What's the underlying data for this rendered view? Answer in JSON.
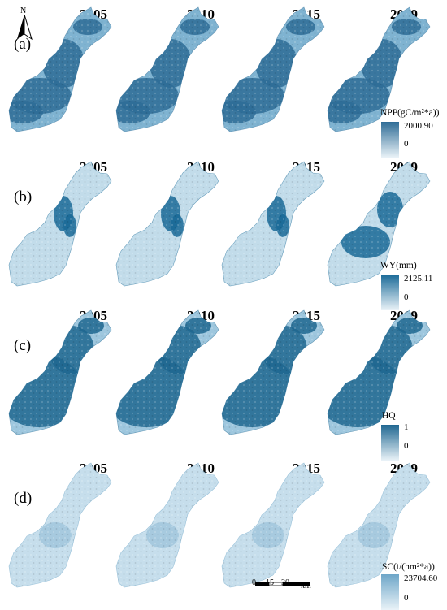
{
  "north_arrow": {
    "label": "N"
  },
  "years": [
    "2005",
    "2010",
    "2015",
    "2019"
  ],
  "panels": [
    {
      "letter": "(a)",
      "legend_title": "NPP(gC/m²*a))",
      "legend_max": "2000.90",
      "legend_min": "0",
      "color_dark": "#2e6c96",
      "color_light": "#7fb3d1"
    },
    {
      "letter": "(b)",
      "legend_title": "WY(mm)",
      "legend_max": "2125.11",
      "legend_min": "0",
      "color_dark": "#1a6a98",
      "color_light": "#c2dcea"
    },
    {
      "letter": "(c)",
      "legend_title": "HQ",
      "legend_max": "1",
      "legend_min": "0",
      "color_dark": "#1f6791",
      "color_light": "#9ec7de"
    },
    {
      "letter": "(d)",
      "legend_title": "SC(t/(hm²*a))",
      "legend_max": "23704.60",
      "legend_min": "0",
      "color_dark": "#6ea6c8",
      "color_light": "#c6deec"
    }
  ],
  "scale_bar": {
    "ticks": [
      "0",
      "15",
      "30"
    ],
    "unit": "km"
  }
}
